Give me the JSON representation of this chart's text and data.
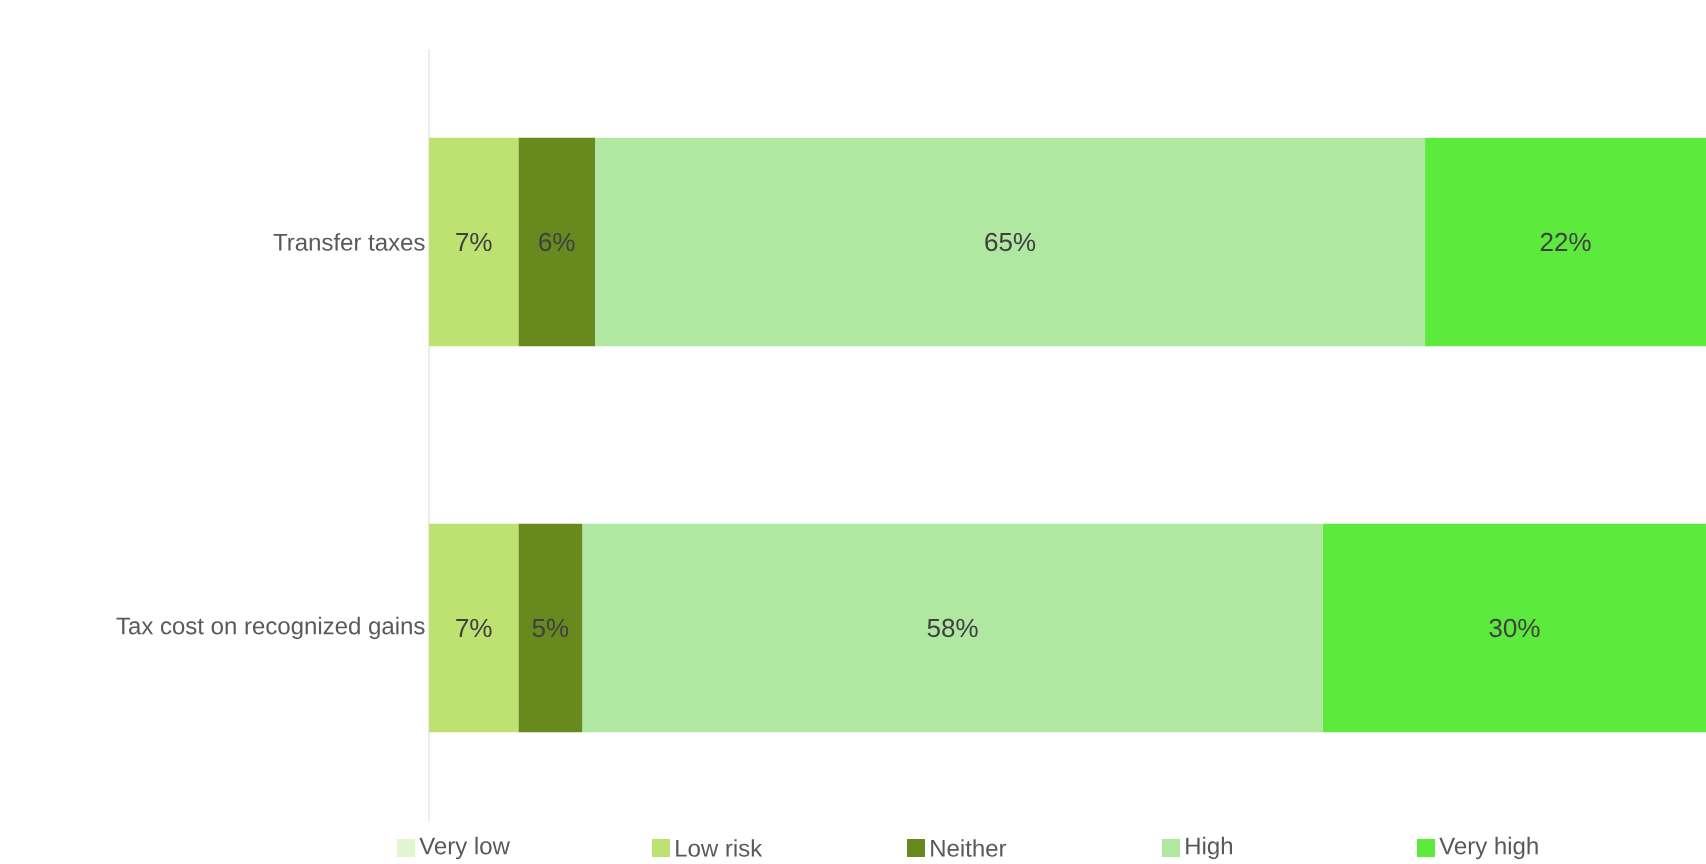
{
  "chart_data": {
    "type": "bar",
    "orientation": "horizontal",
    "stacked": true,
    "categories": [
      "Transfer taxes",
      "Tax cost on recognized gains"
    ],
    "tick_labels": "y",
    "legend": "bottom",
    "series": [
      {
        "name": "Very low",
        "color": "#e2f5d0",
        "values": [
          null,
          null
        ],
        "value_labels": [
          null,
          null
        ]
      },
      {
        "name": "Low risk",
        "color": "#bde272",
        "values": [
          7,
          7
        ],
        "value_labels": [
          "7%",
          "7%"
        ]
      },
      {
        "name": "Neither",
        "color": "#67891d",
        "values": [
          6,
          5
        ],
        "value_labels": [
          "6%",
          "5%"
        ]
      },
      {
        "name": "High",
        "color": "#b0e8a2",
        "values": [
          65,
          58
        ],
        "value_labels": [
          "65%",
          "58%"
        ]
      },
      {
        "name": "Very high",
        "color": "#5ceb3c",
        "values": [
          22,
          30
        ],
        "value_labels": [
          "22%",
          "30%"
        ]
      }
    ]
  }
}
